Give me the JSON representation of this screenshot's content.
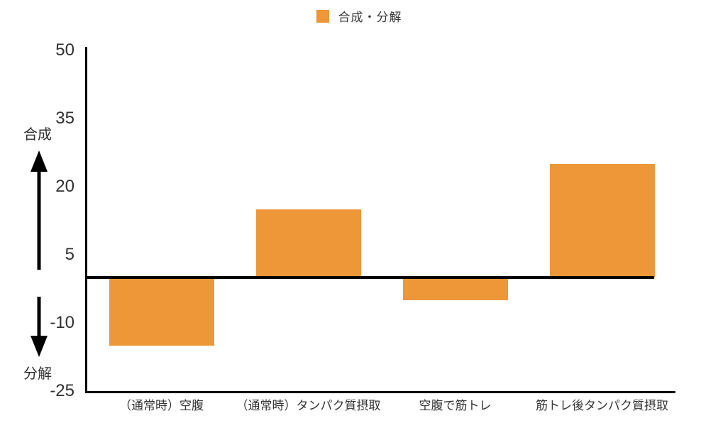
{
  "chart_data": {
    "type": "bar",
    "title": "",
    "legend": "合成・分解",
    "categories": [
      "（通常時）空腹",
      "（通常時）タンパク質摂取",
      "空腹で筋トレ",
      "筋トレ後タンパク質摂取"
    ],
    "values": [
      -15,
      15,
      -5,
      25
    ],
    "ylim": [
      -25,
      50
    ],
    "yticks": [
      50,
      35,
      20,
      5,
      -10,
      -25
    ],
    "xlabel": "",
    "ylabel": "",
    "grid": false,
    "legend_position": "top-center",
    "zero_baseline": true,
    "bar_color": "#ED9738",
    "axis_color": "#000000",
    "annotations": {
      "positive_direction": "合成",
      "negative_direction": "分解"
    }
  }
}
